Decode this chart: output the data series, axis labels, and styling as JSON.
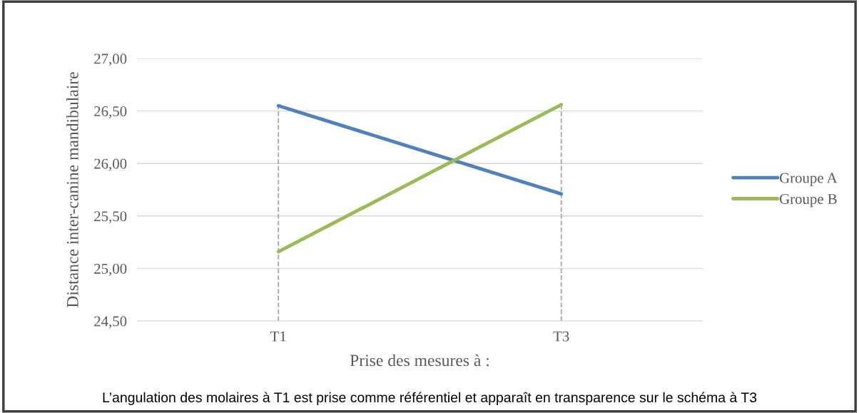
{
  "chart_data": {
    "type": "line",
    "xlabel": "Prise des mesures à :",
    "ylabel": "Distance inter-canine mandibulaire",
    "categories": [
      "T1",
      "T3"
    ],
    "series": [
      {
        "name": "Groupe A",
        "color": "#4f81bd",
        "values": [
          26.55,
          25.71
        ]
      },
      {
        "name": "Groupe B",
        "color": "#9bbb59",
        "values": [
          25.16,
          26.56
        ]
      }
    ],
    "ylim": [
      24.5,
      27.0
    ],
    "yticks": [
      {
        "value": 24.5,
        "label": "24,50"
      },
      {
        "value": 25.0,
        "label": "25,00"
      },
      {
        "value": 25.5,
        "label": "25,50"
      },
      {
        "value": 26.0,
        "label": "26,00"
      },
      {
        "value": 26.5,
        "label": "26,50"
      },
      {
        "value": 27.0,
        "label": "27,00"
      }
    ],
    "grid": "y",
    "legend": "right",
    "marker": "none",
    "line_style": "solid",
    "ref_lines": [
      {
        "axis": "x",
        "value": "T1",
        "label": null,
        "color": "#a6a6a6",
        "line_style": "dashed"
      },
      {
        "axis": "x",
        "value": "T3",
        "label": null,
        "color": "#a6a6a6",
        "line_style": "dashed"
      }
    ],
    "annotations": [
      "L’angulation des molaires à T1 est prise comme référentiel et apparaît en transparence sur le schéma à T3"
    ]
  }
}
